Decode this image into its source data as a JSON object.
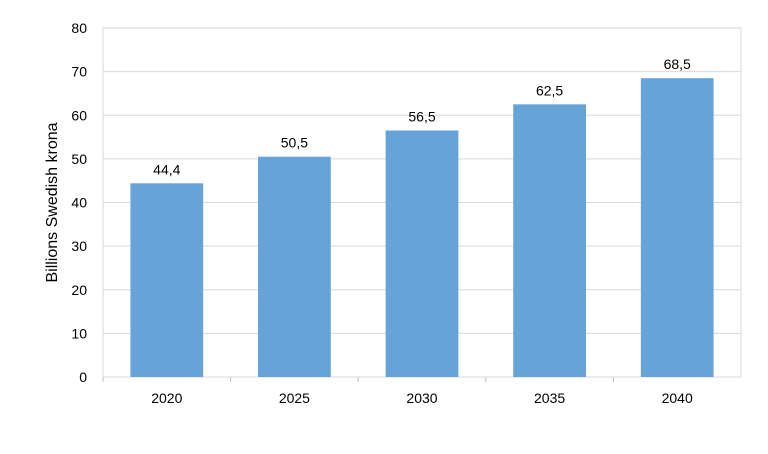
{
  "chart_data": {
    "type": "bar",
    "categories": [
      "2020",
      "2025",
      "2030",
      "2035",
      "2040"
    ],
    "values": [
      44.4,
      50.5,
      56.5,
      62.5,
      68.5
    ],
    "value_labels": [
      "44,4",
      "50,5",
      "56,5",
      "62,5",
      "68,5"
    ],
    "title": "",
    "xlabel": "",
    "ylabel": "Billions Swedish krona",
    "ylim": [
      0,
      80
    ],
    "yticks": [
      0,
      10,
      20,
      30,
      40,
      50,
      60,
      70,
      80
    ],
    "grid": true,
    "bar_color": "#66a3d9",
    "gridline_color": "#d9d9d9",
    "axis_color": "#bfbfbf",
    "border_color": "#d9d9d9"
  }
}
